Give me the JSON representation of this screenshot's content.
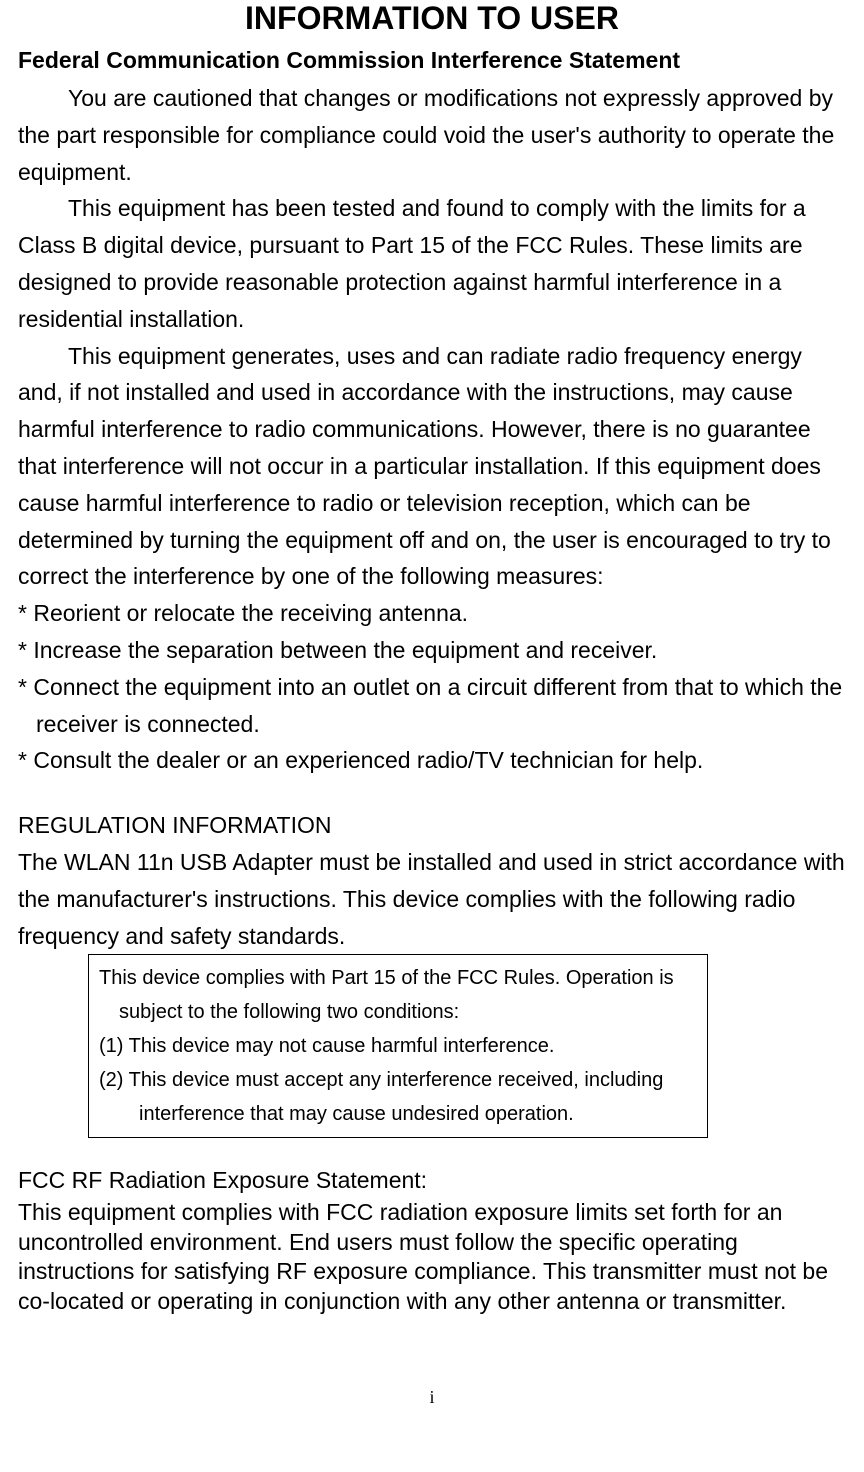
{
  "title": "INFORMATION TO USER",
  "subtitle": "Federal Communication Commission Interference Statement",
  "para1": "You are cautioned that changes or modifications not expressly approved by the part responsible for compliance could void the user's authority to operate the equipment.",
  "para2": "This equipment has been tested and found to comply with the limits for a Class B digital device, pursuant to Part 15 of the FCC Rules. These limits are designed to provide reasonable protection against harmful interference in a residential installation.",
  "para3": "This equipment generates, uses and can radiate radio frequency energy and, if not installed and used in accordance with the instructions, may cause harmful interference to radio communications. However, there is no guarantee that interference will not occur in a particular installation. If this equipment does cause harmful interference to radio or television reception, which can be determined by turning the equipment off and on, the user is encouraged to try to correct the interference by one of the following measures:",
  "bullet1": "* Reorient or relocate the receiving antenna.",
  "bullet2": "* Increase the separation between the equipment and receiver.",
  "bullet3": "* Connect the equipment into an outlet on a circuit different from that to which the receiver is connected.",
  "bullet4": "* Consult the dealer or an experienced radio/TV technician for help.",
  "regulation_heading": "REGULATION INFORMATION",
  "regulation_body": "The WLAN 11n USB Adapter must be installed and used in strict accordance with the manufacturer's instructions. This device complies with the following radio frequency and safety standards.",
  "box_line1": "This device complies with Part 15 of the FCC Rules. Operation is",
  "box_line2": "subject to the following two conditions:",
  "box_cond1": "(1) This device may not cause harmful interference.",
  "box_cond2": "(2) This device must accept any interference received, including",
  "box_cond2b": "interference that may cause undesired operation.",
  "rf_heading": "FCC RF Radiation Exposure Statement:",
  "rf_body": "This equipment complies with FCC radiation exposure limits set forth for an uncontrolled environment. End users must follow the specific operating instructions for satisfying RF exposure compliance. This transmitter must not be co-located or operating in conjunction with any other antenna or transmitter.",
  "page_number": "i",
  "colors": {
    "text": "#000000",
    "background": "#ffffff",
    "border": "#000000"
  }
}
